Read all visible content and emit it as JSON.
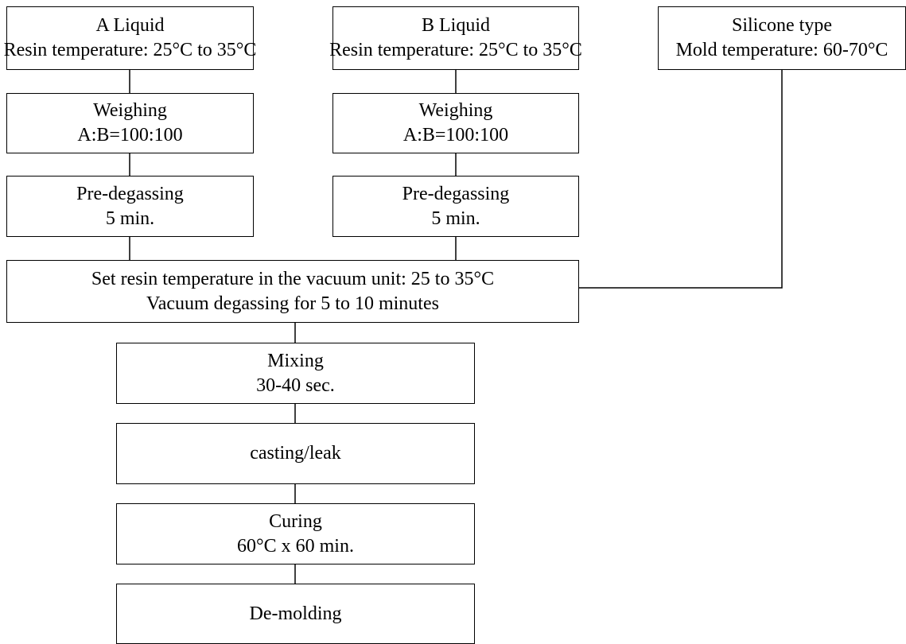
{
  "diagram": {
    "a_liquid": {
      "title": "A Liquid",
      "detail": "Resin temperature: 25°C to 35°C"
    },
    "b_liquid": {
      "title": "B Liquid",
      "detail": "Resin temperature: 25°C to 35°C"
    },
    "silicone": {
      "title": "Silicone type",
      "detail": "Mold temperature: 60-70°C"
    },
    "weighing_a": {
      "title": "Weighing",
      "detail": "A:B=100:100"
    },
    "weighing_b": {
      "title": "Weighing",
      "detail": "A:B=100:100"
    },
    "predegassing_a": {
      "title": "Pre-degassing",
      "detail": "5 min."
    },
    "predegassing_b": {
      "title": "Pre-degassing",
      "detail": "5 min."
    },
    "vacuum": {
      "line1": "Set resin temperature in the vacuum unit: 25 to 35°C",
      "line2": "Vacuum degassing for 5 to 10 minutes"
    },
    "mixing": {
      "title": "Mixing",
      "detail": "30-40 sec."
    },
    "casting": {
      "title": "casting/leak"
    },
    "curing": {
      "title": "Curing",
      "detail": "60°C x 60 min."
    },
    "demolding": {
      "title": "De-molding"
    }
  },
  "colors": {
    "line": "#000000",
    "box_border": "#000000",
    "background": "#ffffff"
  }
}
